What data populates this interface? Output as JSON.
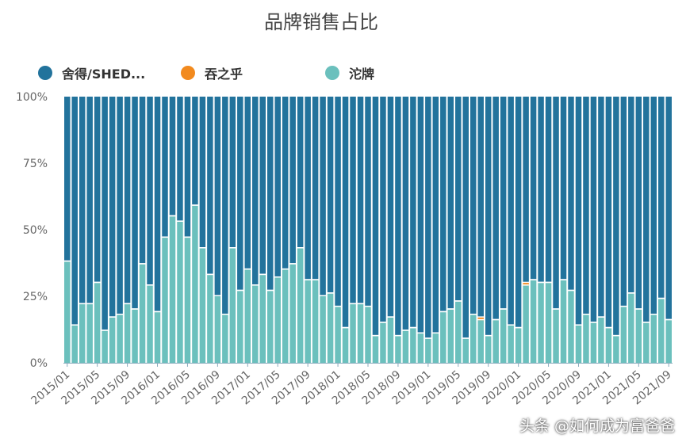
{
  "chart_data": {
    "type": "bar",
    "stacked": "percent",
    "title": "品牌销售占比",
    "ylim": [
      0,
      100
    ],
    "yticks": [
      "0%",
      "25%",
      "50%",
      "75%",
      "100%"
    ],
    "xtick_labels": [
      "2015/01",
      "2015/05",
      "2015/09",
      "2016/01",
      "2016/05",
      "2016/09",
      "2017/01",
      "2017/05",
      "2017/09",
      "2018/01",
      "2018/05",
      "2018/09",
      "2019/01",
      "2019/05",
      "2019/09",
      "2020/01",
      "2020/05",
      "2020/09",
      "2021/01",
      "2021/05",
      "2021/09"
    ],
    "start_month": "2015/01",
    "legend_position": "top",
    "grid": false,
    "series": [
      {
        "name": "沱牌",
        "color": "#6bc0bd",
        "values": [
          38,
          14,
          22,
          22,
          30,
          12,
          17,
          18,
          22,
          20,
          37,
          29,
          19,
          47,
          55,
          53,
          47,
          59,
          43,
          33,
          25,
          18,
          43,
          27,
          35,
          29,
          33,
          27,
          32,
          35,
          37,
          43,
          31,
          31,
          25,
          26,
          21,
          13,
          22,
          22,
          21,
          10,
          15,
          17,
          10,
          12,
          13,
          11,
          9,
          11,
          19,
          20,
          23,
          9,
          18,
          16,
          10,
          16,
          20,
          14,
          13,
          29,
          31,
          30,
          30,
          20,
          31,
          27,
          14,
          18,
          15,
          17,
          13,
          10,
          21,
          26,
          20,
          15,
          18,
          24,
          16
        ]
      },
      {
        "name": "吞之乎",
        "color": "#f28a1e",
        "values": [
          0,
          0,
          0,
          0,
          0,
          0,
          0,
          0,
          0,
          0,
          0,
          0,
          0,
          0,
          0,
          0,
          0,
          0,
          0,
          0,
          0,
          0,
          0,
          0,
          0,
          0,
          0,
          0,
          0,
          0,
          0,
          0,
          0,
          0,
          0,
          0,
          0,
          0,
          0,
          0,
          0,
          0,
          0,
          0,
          0,
          0,
          0,
          0,
          0,
          0,
          0,
          0,
          0,
          0,
          0,
          1,
          0,
          0,
          0,
          0,
          0,
          1,
          0,
          0,
          0,
          0,
          0,
          0,
          0,
          0,
          0,
          0,
          0,
          0,
          0,
          0,
          0,
          0,
          0,
          0,
          0
        ]
      },
      {
        "name": "舍得/SHED...",
        "color": "#22739c",
        "values": "remainder to 100%"
      }
    ]
  },
  "watermark": "头条 @如何成为富爸爸"
}
